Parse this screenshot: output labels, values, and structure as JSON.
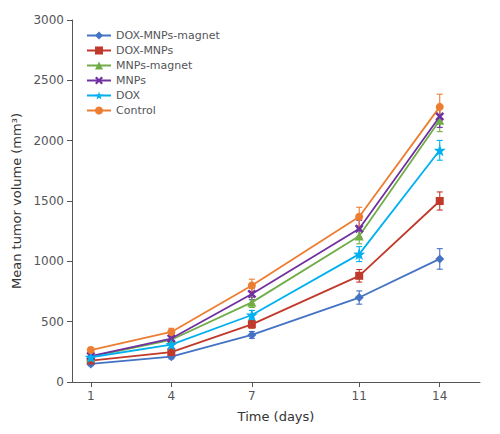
{
  "chart_data": {
    "type": "line",
    "xlabel": "Time (days)",
    "ylabel": "Mean tumor volume (mm³)",
    "x": [
      1,
      4,
      7,
      11,
      14
    ],
    "series": [
      {
        "name": "DOX-MNPs-magnet",
        "color": "#4472c4",
        "marker": "diamond",
        "values": [
          150,
          210,
          390,
          700,
          1020
        ],
        "errors": [
          15,
          18,
          28,
          55,
          85
        ]
      },
      {
        "name": "DOX-MNPs",
        "color": "#c0392b",
        "marker": "square",
        "values": [
          178,
          248,
          478,
          880,
          1500
        ],
        "errors": [
          16,
          20,
          32,
          52,
          75
        ]
      },
      {
        "name": "MNPs-magnet",
        "color": "#70ad47",
        "marker": "triangle",
        "values": [
          210,
          350,
          660,
          1210,
          2170
        ],
        "errors": [
          18,
          26,
          42,
          65,
          95
        ]
      },
      {
        "name": "MNPs",
        "color": "#7030a0",
        "marker": "x",
        "values": [
          215,
          360,
          730,
          1270,
          2200
        ],
        "errors": [
          20,
          28,
          48,
          70,
          90
        ]
      },
      {
        "name": "DOX",
        "color": "#00b0f0",
        "marker": "star",
        "values": [
          205,
          310,
          555,
          1060,
          1920
        ],
        "errors": [
          18,
          24,
          38,
          62,
          82
        ]
      },
      {
        "name": "Control",
        "color": "#ed7d31",
        "marker": "circle",
        "values": [
          265,
          415,
          800,
          1370,
          2280
        ],
        "errors": [
          22,
          30,
          52,
          78,
          105
        ]
      }
    ],
    "xlim": [
      0.3,
      15.5
    ],
    "xticks": [
      1,
      4,
      7,
      11,
      14
    ],
    "ylim": [
      0,
      3000
    ],
    "yticks": [
      0,
      500,
      1000,
      1500,
      2000,
      2500,
      3000
    ],
    "grid": false,
    "legend": "upper left"
  }
}
